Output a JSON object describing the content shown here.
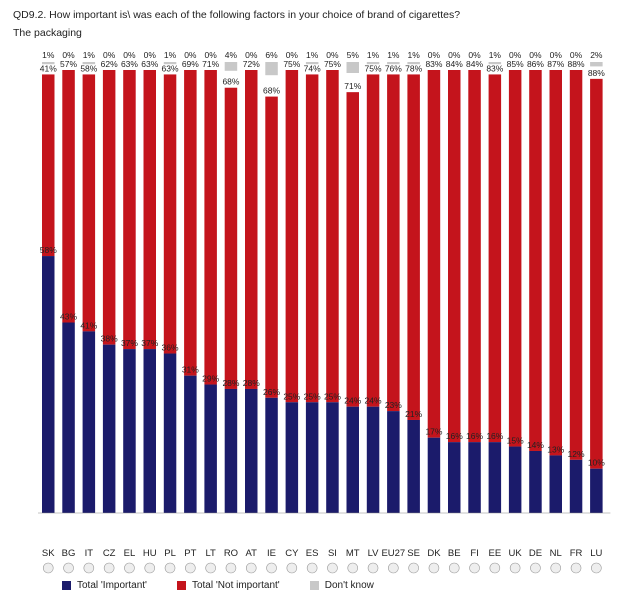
{
  "page": {
    "title": "QD9.2. How important is\\ was each of the following factors in your choice of brand of cigarettes?",
    "subtitle": "The packaging"
  },
  "colors": {
    "important": "#1b1b6b",
    "not_important": "#c4141c",
    "dont_know": "#c8c8c8"
  },
  "legend": [
    {
      "label": "Total 'Important'",
      "color": "#1b1b6b"
    },
    {
      "label": "Total 'Not important'",
      "color": "#c4141c"
    },
    {
      "label": "Don't know",
      "color": "#c8c8c8"
    }
  ],
  "chart_data": {
    "type": "bar",
    "stacked": true,
    "ylim": [
      0,
      100
    ],
    "categories": [
      "SK",
      "BG",
      "IT",
      "CZ",
      "EL",
      "HU",
      "PL",
      "PT",
      "LT",
      "RO",
      "AT",
      "IE",
      "CY",
      "ES",
      "SI",
      "MT",
      "LV",
      "EU27",
      "SE",
      "DK",
      "BE",
      "FI",
      "EE",
      "UK",
      "DE",
      "NL",
      "FR",
      "LU"
    ],
    "series": [
      {
        "name": "Total 'Important'",
        "values": [
          58,
          43,
          41,
          38,
          37,
          37,
          36,
          31,
          29,
          28,
          28,
          26,
          25,
          25,
          25,
          24,
          24,
          23,
          21,
          17,
          16,
          16,
          16,
          15,
          14,
          13,
          12,
          10
        ]
      },
      {
        "name": "Total 'Not important'",
        "values": [
          41,
          57,
          58,
          62,
          63,
          63,
          63,
          69,
          71,
          68,
          72,
          68,
          75,
          74,
          75,
          71,
          75,
          76,
          78,
          83,
          84,
          84,
          83,
          85,
          86,
          87,
          88,
          88
        ]
      },
      {
        "name": "Don't know",
        "values": [
          1,
          0,
          1,
          0,
          0,
          0,
          1,
          0,
          0,
          4,
          0,
          6,
          0,
          1,
          0,
          5,
          1,
          1,
          1,
          0,
          0,
          0,
          1,
          0,
          0,
          0,
          0,
          2
        ]
      }
    ]
  }
}
